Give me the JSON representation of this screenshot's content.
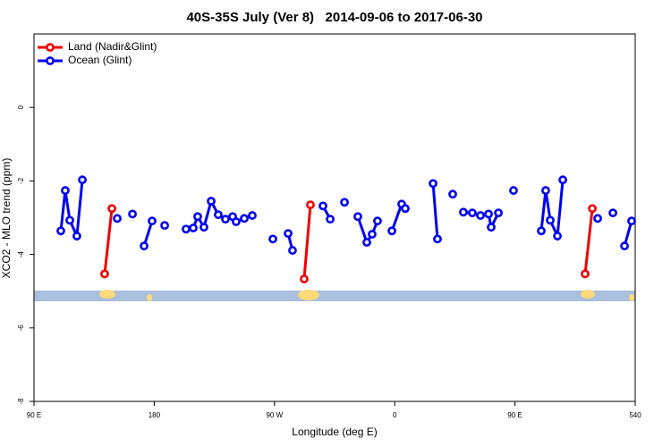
{
  "chart_data": {
    "type": "line",
    "title": "40S-35S July (Ver 8)   2014-09-06 to 2017-06-30",
    "xlabel": "Longitude (deg E)",
    "ylabel": "XCO2 - MLO trend (ppm)",
    "xlim": [
      90,
      540
    ],
    "xticks": [
      {
        "value": 90,
        "label": "90 E"
      },
      180,
      {
        "value": 270,
        "label": "90 W"
      },
      {
        "value": 360,
        "label": "0"
      },
      {
        "value": 450,
        "label": "90 E"
      },
      540
    ],
    "ylim": [
      -8,
      2
    ],
    "yticks": [
      -8,
      -6,
      -4,
      -2,
      0
    ],
    "legend": "top-left",
    "series": [
      {
        "name": "Land (Nadir&Glint)",
        "color": "#ee0000",
        "x": [
          142.9,
          148.3,
          null,
          292.2,
          296.9,
          null,
          502.5,
          507.9
        ],
        "values": [
          -4.53,
          -2.75,
          null,
          -4.67,
          -2.65,
          null,
          -4.53,
          -2.75
        ]
      },
      {
        "name": "Ocean (Glint)",
        "color": "#0000ee",
        "x": [
          110.1,
          113.4,
          116.8,
          122.1,
          126.2,
          null,
          152.3,
          null,
          163.7,
          null,
          172.4,
          178.4,
          null,
          187.8,
          null,
          203.8,
          209.2,
          212.5,
          217.2,
          222.6,
          227.9,
          233.3,
          238.7,
          241.3,
          247.4,
          253.4,
          null,
          268.8,
          null,
          280.2,
          283.5,
          null,
          306.3,
          311.7,
          null,
          322.4,
          null,
          332.4,
          339.1,
          343.1,
          347.1,
          null,
          357.9,
          365.2,
          367.9,
          null,
          388.7,
          392.0,
          null,
          403.4,
          null,
          411.4,
          418.1,
          424.2,
          430.2,
          432.2,
          437.6,
          null,
          448.9,
          null,
          469.7,
          473.0,
          476.4,
          481.8,
          485.8,
          null,
          511.9,
          null,
          523.3,
          null,
          532.0,
          537.3
        ],
        "values": [
          -3.36,
          -2.26,
          -3.07,
          -3.5,
          -1.97,
          null,
          -3.02,
          null,
          -2.9,
          null,
          -3.77,
          -3.09,
          null,
          -3.21,
          null,
          -3.31,
          -3.28,
          -2.97,
          -3.26,
          -2.55,
          -2.92,
          -3.04,
          -2.97,
          -3.11,
          -3.02,
          -2.94,
          null,
          -3.58,
          null,
          -3.43,
          -3.89,
          null,
          -2.68,
          -3.04,
          null,
          -2.58,
          null,
          -2.97,
          -3.67,
          -3.45,
          -3.09,
          null,
          -3.36,
          -2.63,
          -2.75,
          null,
          -2.07,
          -3.58,
          null,
          -2.36,
          null,
          -2.85,
          -2.87,
          -2.94,
          -2.9,
          -3.26,
          -2.87,
          null,
          -2.26,
          null,
          -3.36,
          -2.26,
          -3.07,
          -3.5,
          -1.97,
          null,
          -3.02,
          null,
          -2.87,
          null,
          -3.77,
          -3.09
        ]
      }
    ]
  }
}
